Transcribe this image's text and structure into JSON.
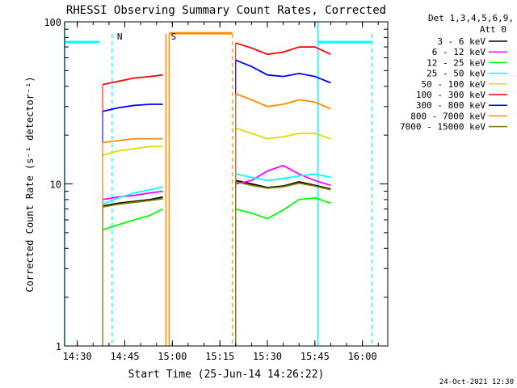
{
  "chart_data": {
    "type": "line",
    "title": "RHESSI Observing Summary Count Rates, Corrected",
    "xlabel": "Start Time (25-Jun-14 14:26:22)",
    "ylabel": "Corrected Count Rate (s⁻¹ detector⁻¹)",
    "yscale": "log",
    "ylim": [
      1,
      100
    ],
    "xlim": [
      "14:26",
      "16:08"
    ],
    "x_ticks": [
      "14:30",
      "14:45",
      "15:00",
      "15:15",
      "15:30",
      "15:45",
      "16:00"
    ],
    "y_ticks": [
      "1",
      "10",
      "100"
    ],
    "grid": false,
    "legend_position": "top-right",
    "legend_header": [
      "Det 1,3,4,5,6,9,",
      "Att 0"
    ],
    "series": [
      {
        "name": "3 - 6 keV",
        "color": "#000000",
        "segments": [
          {
            "x": [
              "14:38",
              "14:43",
              "14:48",
              "14:53",
              "14:57"
            ],
            "y": [
              7.3,
              7.6,
              7.8,
              8.0,
              8.3
            ]
          },
          {
            "x": [
              "15:20",
              "15:25",
              "15:30",
              "15:35",
              "15:40",
              "15:45",
              "15:50"
            ],
            "y": [
              10.5,
              10.0,
              9.5,
              9.7,
              10.3,
              9.8,
              9.3
            ]
          }
        ]
      },
      {
        "name": "6 - 12 keV",
        "color": "#ff00ff",
        "segments": [
          {
            "x": [
              "14:38",
              "14:43",
              "14:48",
              "14:53",
              "14:57"
            ],
            "y": [
              8.0,
              8.3,
              8.5,
              8.8,
              9.0
            ]
          },
          {
            "x": [
              "15:20",
              "15:25",
              "15:30",
              "15:35",
              "15:40",
              "15:45",
              "15:50"
            ],
            "y": [
              10.0,
              10.5,
              12.0,
              13.0,
              11.5,
              10.5,
              9.8
            ]
          }
        ]
      },
      {
        "name": "12 - 25 keV",
        "color": "#00ff00",
        "segments": [
          {
            "x": [
              "14:38",
              "14:43",
              "14:48",
              "14:53",
              "14:57"
            ],
            "y": [
              5.2,
              5.6,
              6.0,
              6.4,
              7.0
            ]
          },
          {
            "x": [
              "15:20",
              "15:25",
              "15:30",
              "15:35",
              "15:40",
              "15:45",
              "15:50"
            ],
            "y": [
              7.0,
              6.6,
              6.1,
              6.9,
              8.0,
              8.2,
              7.6
            ]
          }
        ]
      },
      {
        "name": "25 - 50 keV",
        "color": "#00ffff",
        "segments": [
          {
            "x": [
              "14:38",
              "14:43",
              "14:48",
              "14:53",
              "14:57"
            ],
            "y": [
              7.5,
              8.2,
              8.8,
              9.2,
              9.6
            ]
          },
          {
            "x": [
              "15:20",
              "15:25",
              "15:30",
              "15:35",
              "15:40",
              "15:45",
              "15:50"
            ],
            "y": [
              11.5,
              11.0,
              10.5,
              10.8,
              11.2,
              11.5,
              11.0
            ]
          }
        ]
      },
      {
        "name": "50 - 100 keV",
        "color": "#dddd00",
        "segments": [
          {
            "x": [
              "14:38",
              "14:43",
              "14:48",
              "14:53",
              "14:57"
            ],
            "y": [
              15.0,
              16.0,
              16.5,
              17.0,
              17.0
            ]
          },
          {
            "x": [
              "15:20",
              "15:25",
              "15:30",
              "15:35",
              "15:40",
              "15:45",
              "15:50"
            ],
            "y": [
              22.0,
              20.5,
              19.0,
              19.5,
              20.5,
              20.5,
              19.0
            ]
          }
        ]
      },
      {
        "name": "100 - 300 keV",
        "color": "#ff0000",
        "segments": [
          {
            "x": [
              "14:38",
              "14:43",
              "14:48",
              "14:53",
              "14:57"
            ],
            "y": [
              41,
              43,
              45,
              46,
              47
            ]
          },
          {
            "x": [
              "15:20",
              "15:25",
              "15:30",
              "15:35",
              "15:40",
              "15:45",
              "15:50"
            ],
            "y": [
              74,
              69,
              63,
              65,
              70,
              70,
              63
            ]
          }
        ]
      },
      {
        "name": "300 - 800 keV",
        "color": "#0000ff",
        "segments": [
          {
            "x": [
              "14:38",
              "14:43",
              "14:48",
              "14:53",
              "14:57"
            ],
            "y": [
              28,
              29.5,
              30.5,
              31,
              31
            ]
          },
          {
            "x": [
              "15:20",
              "15:25",
              "15:30",
              "15:35",
              "15:40",
              "15:45",
              "15:50"
            ],
            "y": [
              58,
              53,
              47,
              46,
              48,
              46,
              42
            ]
          }
        ]
      },
      {
        "name": "800 - 7000 keV",
        "color": "#ff8c00",
        "segments": [
          {
            "x": [
              "14:38",
              "14:43",
              "14:48",
              "14:53",
              "14:57"
            ],
            "y": [
              18,
              18.5,
              19,
              19,
              19
            ]
          },
          {
            "x": [
              "15:20",
              "15:25",
              "15:30",
              "15:35",
              "15:40",
              "15:45",
              "15:50"
            ],
            "y": [
              36,
              33,
              30,
              31,
              33,
              32,
              29
            ]
          }
        ]
      },
      {
        "name": "7000 - 15000 keV",
        "color": "#808000",
        "segments": [
          {
            "x": [
              "14:38",
              "14:43",
              "14:48",
              "14:53",
              "14:57"
            ],
            "y": [
              7.2,
              7.5,
              7.7,
              7.9,
              8.1
            ]
          },
          {
            "x": [
              "15:20",
              "15:25",
              "15:30",
              "15:35",
              "15:40",
              "15:45",
              "15:50"
            ],
            "y": [
              10.3,
              9.8,
              9.4,
              9.6,
              10.1,
              9.7,
              9.2
            ]
          }
        ]
      }
    ],
    "annotations": [
      {
        "label": "N",
        "color": "#00ffff",
        "x": "14:41"
      },
      {
        "label": "S",
        "color": "#ff8c00",
        "x": "14:58"
      }
    ],
    "night_periods": {
      "color": "#00ffff",
      "level": 75,
      "ranges": [
        [
          "14:26",
          "14:37"
        ],
        [
          "15:46",
          "16:03"
        ]
      ],
      "solid_edges": [
        "14:26",
        "15:46"
      ],
      "dashed_edges": [
        "14:41",
        "16:03"
      ]
    },
    "saa_period": {
      "color": "#ff8c00",
      "level": 85,
      "range": [
        "14:59",
        "15:19"
      ],
      "solid_edges": [
        "14:58",
        "14:59"
      ],
      "dashed_edges": [
        "15:19"
      ]
    },
    "footer": "24-Oct-2021 12:30"
  }
}
